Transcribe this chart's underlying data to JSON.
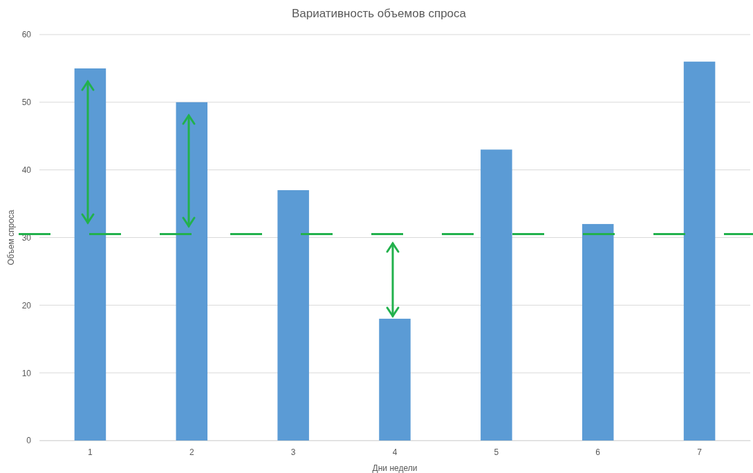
{
  "chart_data": {
    "type": "bar",
    "title": "Вариативность объемов спроса",
    "xlabel": "Дни недели",
    "ylabel": "Объем спроса",
    "categories": [
      "1",
      "2",
      "3",
      "4",
      "5",
      "6",
      "7"
    ],
    "values": [
      55,
      50,
      37,
      18,
      43,
      32,
      56
    ],
    "color": "#5b9bd5",
    "ylim": [
      0,
      60
    ],
    "yticks": [
      0,
      10,
      20,
      30,
      40,
      50,
      60
    ],
    "grid": "y",
    "ref_lines": [
      {
        "axis": "y",
        "value": 30.5,
        "color": "#22b14c",
        "line_style": "dashed"
      }
    ]
  }
}
